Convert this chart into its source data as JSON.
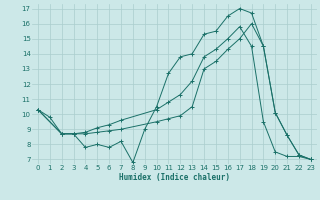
{
  "xlabel": "Humidex (Indice chaleur)",
  "bg_color": "#cce8e8",
  "grid_color": "#aacece",
  "line_color": "#1a7068",
  "tick_color": "#1a7068",
  "xlim": [
    -0.5,
    23.5
  ],
  "ylim": [
    6.7,
    17.3
  ],
  "yticks": [
    7,
    8,
    9,
    10,
    11,
    12,
    13,
    14,
    15,
    16,
    17
  ],
  "xticks": [
    0,
    1,
    2,
    3,
    4,
    5,
    6,
    7,
    8,
    9,
    10,
    11,
    12,
    13,
    14,
    15,
    16,
    17,
    18,
    19,
    20,
    21,
    22,
    23
  ],
  "line1_x": [
    0,
    1,
    2,
    3,
    4,
    5,
    6,
    7,
    8,
    9,
    10,
    11,
    12,
    13,
    14,
    15,
    16,
    17,
    18,
    19,
    20,
    21,
    22,
    23
  ],
  "line1_y": [
    10.3,
    9.8,
    8.7,
    8.7,
    7.8,
    8.0,
    7.8,
    8.2,
    6.8,
    9.0,
    10.5,
    12.7,
    13.8,
    14.0,
    15.3,
    15.5,
    16.5,
    17.0,
    16.7,
    14.5,
    10.1,
    8.6,
    7.3,
    7.0
  ],
  "line2_x": [
    0,
    2,
    3,
    4,
    5,
    6,
    7,
    10,
    11,
    12,
    13,
    14,
    15,
    16,
    17,
    18,
    19,
    20,
    21,
    22,
    23
  ],
  "line2_y": [
    10.3,
    8.7,
    8.7,
    8.8,
    9.1,
    9.3,
    9.6,
    10.3,
    10.8,
    11.3,
    12.2,
    13.8,
    14.3,
    15.0,
    15.8,
    14.5,
    9.5,
    7.5,
    7.2,
    7.2,
    7.0
  ],
  "line3_x": [
    0,
    2,
    3,
    4,
    5,
    6,
    7,
    10,
    11,
    12,
    13,
    14,
    15,
    16,
    17,
    18,
    19,
    20,
    21,
    22,
    23
  ],
  "line3_y": [
    10.3,
    8.7,
    8.7,
    8.7,
    8.8,
    8.9,
    9.0,
    9.5,
    9.7,
    9.9,
    10.5,
    13.0,
    13.5,
    14.3,
    15.0,
    16.0,
    14.5,
    10.1,
    8.6,
    7.3,
    7.0
  ],
  "xlabel_fontsize": 5.5,
  "tick_fontsize": 5.0
}
